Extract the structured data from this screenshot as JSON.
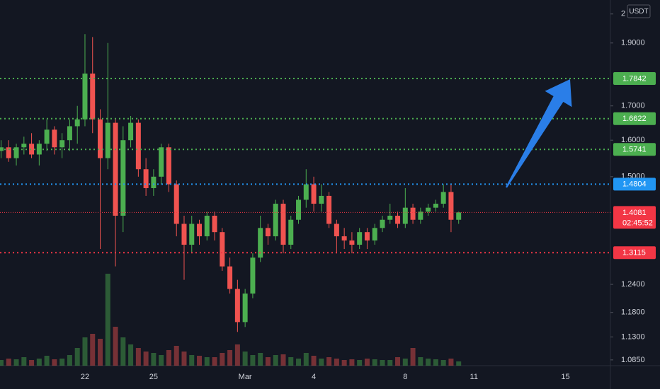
{
  "chart_data": {
    "type": "candlestick",
    "y_unit": "USDT",
    "log_scale": true,
    "grid": false,
    "up_color": "#4caf50",
    "down_color": "#f05350",
    "ylim": [
      1.074,
      2.05
    ],
    "yticks": [
      2,
      {
        "value": 1.9,
        "label": "1.9000"
      },
      {
        "value": 1.7,
        "label": "1.7000"
      },
      {
        "value": 1.6,
        "label": "1.6000"
      },
      {
        "value": 1.5,
        "label": "1.5000"
      },
      {
        "value": 1.24,
        "label": "1.2400"
      },
      {
        "value": 1.18,
        "label": "1.1800"
      },
      {
        "value": 1.13,
        "label": "1.1300"
      },
      {
        "value": 1.085,
        "label": "1.0850"
      }
    ],
    "categories": [
      null,
      null,
      null,
      null,
      null,
      null,
      null,
      null,
      null,
      null,
      null,
      "22",
      null,
      null,
      null,
      null,
      null,
      null,
      null,
      null,
      "25",
      null,
      null,
      null,
      null,
      null,
      null,
      null,
      null,
      null,
      null,
      null,
      "Mar",
      null,
      null,
      null,
      null,
      null,
      null,
      null,
      null,
      "4",
      null,
      null,
      null,
      null,
      null,
      null,
      null,
      null,
      null,
      null,
      null,
      "8",
      null,
      null,
      null,
      null,
      null,
      null,
      null,
      null,
      "11",
      null,
      null,
      null,
      null,
      null,
      null,
      null,
      null,
      null,
      null,
      null,
      "15",
      null,
      null,
      null,
      null,
      null
    ],
    "open": [
      1.57,
      1.58,
      1.55,
      1.58,
      1.59,
      1.56,
      1.59,
      1.63,
      1.58,
      1.6,
      1.64,
      1.66,
      1.8,
      1.66,
      1.55,
      1.65,
      1.4,
      1.6,
      1.65,
      1.52,
      1.47,
      1.5,
      1.58,
      1.48,
      1.38,
      1.33,
      1.38,
      1.35,
      1.4,
      1.36,
      1.28,
      1.23,
      1.16,
      1.22,
      1.3,
      1.37,
      1.35,
      1.43,
      1.33,
      1.39,
      1.44,
      1.48,
      1.43,
      1.45,
      1.38,
      1.35,
      1.34,
      1.33,
      1.36,
      1.34,
      1.37,
      1.39,
      1.4,
      1.38,
      1.42,
      1.39,
      1.41,
      1.42,
      1.43,
      1.46,
      1.39,
      null,
      null,
      null,
      null,
      null,
      null,
      null,
      null,
      null,
      null,
      null,
      null,
      null,
      null,
      null,
      null,
      null,
      null,
      null
    ],
    "high": [
      1.6,
      1.6,
      1.59,
      1.61,
      1.62,
      1.6,
      1.66,
      1.64,
      1.62,
      1.66,
      1.7,
      1.93,
      1.92,
      1.69,
      1.9,
      1.66,
      1.64,
      1.67,
      1.66,
      1.55,
      1.52,
      1.59,
      1.59,
      1.49,
      1.4,
      1.4,
      1.39,
      1.41,
      1.41,
      1.37,
      1.3,
      1.25,
      1.23,
      1.31,
      1.4,
      1.38,
      1.44,
      1.44,
      1.4,
      1.45,
      1.52,
      1.5,
      1.48,
      1.46,
      1.39,
      1.37,
      1.36,
      1.37,
      1.37,
      1.38,
      1.4,
      1.43,
      1.41,
      1.47,
      1.43,
      1.42,
      1.43,
      1.44,
      1.48,
      1.48,
      1.41,
      null,
      null,
      null,
      null,
      null,
      null,
      null,
      null,
      null,
      null,
      null,
      null,
      null,
      null,
      null,
      null,
      null,
      null,
      null
    ],
    "low": [
      1.55,
      1.54,
      1.53,
      1.56,
      1.55,
      1.53,
      1.57,
      1.56,
      1.55,
      1.57,
      1.59,
      1.64,
      1.62,
      1.32,
      1.52,
      1.28,
      1.36,
      1.58,
      1.5,
      1.45,
      1.45,
      1.48,
      1.46,
      1.35,
      1.25,
      1.31,
      1.33,
      1.34,
      1.34,
      1.27,
      1.22,
      1.14,
      1.15,
      1.21,
      1.29,
      1.33,
      1.34,
      1.31,
      1.32,
      1.38,
      1.42,
      1.41,
      1.41,
      1.37,
      1.31,
      1.32,
      1.31,
      1.32,
      1.32,
      1.33,
      1.36,
      1.38,
      1.37,
      1.37,
      1.38,
      1.38,
      1.4,
      1.41,
      1.42,
      1.36,
      1.38,
      null,
      null,
      null,
      null,
      null,
      null,
      null,
      null,
      null,
      null,
      null,
      null,
      null,
      null,
      null,
      null,
      null,
      null,
      null
    ],
    "close": [
      1.58,
      1.55,
      1.58,
      1.59,
      1.56,
      1.59,
      1.63,
      1.58,
      1.6,
      1.64,
      1.66,
      1.8,
      1.66,
      1.55,
      1.65,
      1.4,
      1.6,
      1.65,
      1.52,
      1.47,
      1.5,
      1.58,
      1.48,
      1.38,
      1.33,
      1.38,
      1.35,
      1.4,
      1.36,
      1.28,
      1.23,
      1.16,
      1.22,
      1.3,
      1.37,
      1.35,
      1.43,
      1.33,
      1.39,
      1.44,
      1.48,
      1.43,
      1.45,
      1.38,
      1.35,
      1.34,
      1.33,
      1.36,
      1.34,
      1.37,
      1.39,
      1.4,
      1.38,
      1.42,
      1.39,
      1.41,
      1.42,
      1.43,
      1.46,
      1.39,
      1.4081,
      null,
      null,
      null,
      null,
      null,
      null,
      null,
      null,
      null,
      null,
      null,
      null,
      null,
      null,
      null,
      null,
      null,
      null,
      null
    ],
    "volume": [
      8,
      10,
      9,
      12,
      8,
      10,
      14,
      9,
      10,
      15,
      25,
      40,
      45,
      38,
      130,
      55,
      40,
      30,
      25,
      20,
      18,
      15,
      22,
      28,
      20,
      15,
      14,
      12,
      12,
      18,
      22,
      30,
      20,
      15,
      18,
      12,
      15,
      16,
      12,
      10,
      18,
      14,
      10,
      12,
      10,
      8,
      9,
      8,
      10,
      9,
      8,
      8,
      12,
      10,
      25,
      12,
      10,
      9,
      8,
      10,
      6,
      null,
      null,
      null,
      null,
      null,
      null,
      null,
      null,
      null,
      null,
      null,
      null,
      null,
      null,
      null,
      null,
      null,
      null,
      null
    ],
    "levels": [
      {
        "value": 1.7842,
        "color": "#4caf50"
      },
      {
        "value": 1.6622,
        "color": "#4caf50"
      },
      {
        "value": 1.5741,
        "color": "#4caf50"
      },
      {
        "value": 1.4804,
        "color": "#2196f3"
      },
      {
        "value": 1.3115,
        "color": "#f23645"
      }
    ],
    "last_price": {
      "value": 1.4081,
      "countdown": "02:45:52",
      "color": "#f23645"
    }
  }
}
